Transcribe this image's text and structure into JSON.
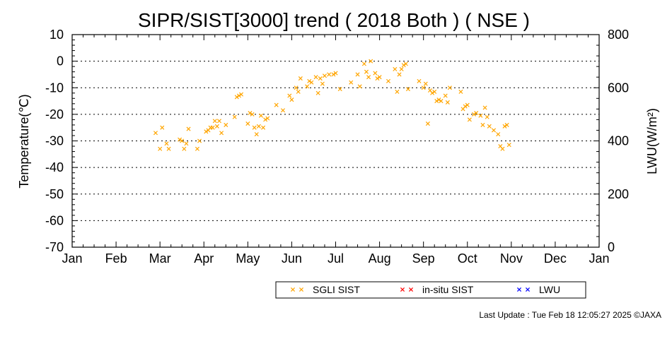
{
  "title": "SIPR/SIST[3000] trend ( 2018 Both ) ( NSE )",
  "footer": "Last Update : Tue Feb 18 12:05:27 2025  ©JAXA",
  "chart_data": {
    "type": "scatter",
    "title": "SIPR/SIST[3000] trend ( 2018 Both ) ( NSE )",
    "ylabel_left": "Temperature(℃)",
    "ylabel_right": "LWU(W/m²)",
    "y_left_range": [
      -70,
      10
    ],
    "y_right_range": [
      0,
      800
    ],
    "x_range_months": [
      0,
      12
    ],
    "grid": "horizontal dotted",
    "legend_placement": "bottom",
    "x_tick_labels": [
      "Jan",
      "Feb",
      "Mar",
      "Apr",
      "May",
      "Jun",
      "Jul",
      "Aug",
      "Sep",
      "Oct",
      "Nov",
      "Dec",
      "Jan"
    ],
    "y_left_ticks": [
      "10",
      "0",
      "-10",
      "-20",
      "-30",
      "-40",
      "-50",
      "-60",
      "-70"
    ],
    "y_right_ticks": [
      "800",
      "600",
      "400",
      "200",
      "0"
    ],
    "series": [
      {
        "name": "SGLI SIST",
        "color": "#ffa500",
        "marker": "x",
        "points": [
          [
            1.9,
            -27
          ],
          [
            2.0,
            -33
          ],
          [
            2.05,
            -25
          ],
          [
            2.15,
            -31
          ],
          [
            2.2,
            -33
          ],
          [
            2.45,
            -29.5
          ],
          [
            2.5,
            -30
          ],
          [
            2.55,
            -33
          ],
          [
            2.6,
            -31
          ],
          [
            2.65,
            -25.5
          ],
          [
            2.85,
            -33
          ],
          [
            2.9,
            -30
          ],
          [
            3.05,
            -26.5
          ],
          [
            3.1,
            -26
          ],
          [
            3.15,
            -25
          ],
          [
            3.2,
            -25
          ],
          [
            3.25,
            -22.5
          ],
          [
            3.3,
            -24.5
          ],
          [
            3.35,
            -22.5
          ],
          [
            3.4,
            -27
          ],
          [
            3.5,
            -24
          ],
          [
            3.7,
            -21
          ],
          [
            3.75,
            -13.5
          ],
          [
            3.8,
            -13
          ],
          [
            3.85,
            -12.5
          ],
          [
            4.0,
            -23.5
          ],
          [
            4.05,
            -19.5
          ],
          [
            4.1,
            -20
          ],
          [
            4.15,
            -25
          ],
          [
            4.2,
            -27.5
          ],
          [
            4.25,
            -24.5
          ],
          [
            4.3,
            -20.5
          ],
          [
            4.35,
            -25
          ],
          [
            4.4,
            -22
          ],
          [
            4.45,
            -21.5
          ],
          [
            4.65,
            -16.5
          ],
          [
            4.8,
            -18.5
          ],
          [
            4.95,
            -13
          ],
          [
            5.0,
            -14.5
          ],
          [
            5.1,
            -10
          ],
          [
            5.15,
            -11.5
          ],
          [
            5.2,
            -6.5
          ],
          [
            5.35,
            -9.5
          ],
          [
            5.4,
            -7.5
          ],
          [
            5.45,
            -8
          ],
          [
            5.55,
            -6
          ],
          [
            5.6,
            -12
          ],
          [
            5.65,
            -6.5
          ],
          [
            5.7,
            -8.5
          ],
          [
            5.75,
            -5.5
          ],
          [
            5.85,
            -5
          ],
          [
            5.95,
            -5
          ],
          [
            6.0,
            -4.5
          ],
          [
            6.1,
            -10.5
          ],
          [
            6.35,
            -8
          ],
          [
            6.5,
            -5
          ],
          [
            6.55,
            -9.5
          ],
          [
            6.65,
            -1
          ],
          [
            6.7,
            -4
          ],
          [
            6.75,
            -6
          ],
          [
            6.8,
            0
          ],
          [
            6.9,
            -4.5
          ],
          [
            6.95,
            -6.5
          ],
          [
            7.0,
            -6
          ],
          [
            7.2,
            -7.5
          ],
          [
            7.35,
            -3
          ],
          [
            7.4,
            -11.5
          ],
          [
            7.45,
            -5
          ],
          [
            7.5,
            -3
          ],
          [
            7.55,
            -1.5
          ],
          [
            7.6,
            -1
          ],
          [
            7.65,
            -10.5
          ],
          [
            7.9,
            -7.5
          ],
          [
            8.0,
            -10
          ],
          [
            8.05,
            -8.5
          ],
          [
            8.1,
            -23.5
          ],
          [
            8.15,
            -11
          ],
          [
            8.2,
            -12
          ],
          [
            8.25,
            -11.5
          ],
          [
            8.3,
            -15
          ],
          [
            8.35,
            -14.5
          ],
          [
            8.4,
            -15
          ],
          [
            8.5,
            -13
          ],
          [
            8.55,
            -15.5
          ],
          [
            8.6,
            -10
          ],
          [
            8.85,
            -11.5
          ],
          [
            8.9,
            -18
          ],
          [
            8.95,
            -17
          ],
          [
            9.0,
            -16.5
          ],
          [
            9.05,
            -22
          ],
          [
            9.15,
            -20
          ],
          [
            9.2,
            -19.5
          ],
          [
            9.3,
            -20.5
          ],
          [
            9.35,
            -24
          ],
          [
            9.4,
            -17.5
          ],
          [
            9.45,
            -21
          ],
          [
            9.5,
            -24.5
          ],
          [
            9.6,
            -26
          ],
          [
            9.7,
            -27.5
          ],
          [
            9.75,
            -32
          ],
          [
            9.8,
            -33
          ],
          [
            9.85,
            -24.5
          ],
          [
            9.9,
            -24
          ],
          [
            9.95,
            -31.5
          ]
        ]
      },
      {
        "name": "in-situ SIST",
        "color": "#ff0000",
        "marker": "x",
        "points": []
      },
      {
        "name": "LWU",
        "color": "#0000ff",
        "marker": "x",
        "points": []
      }
    ]
  }
}
